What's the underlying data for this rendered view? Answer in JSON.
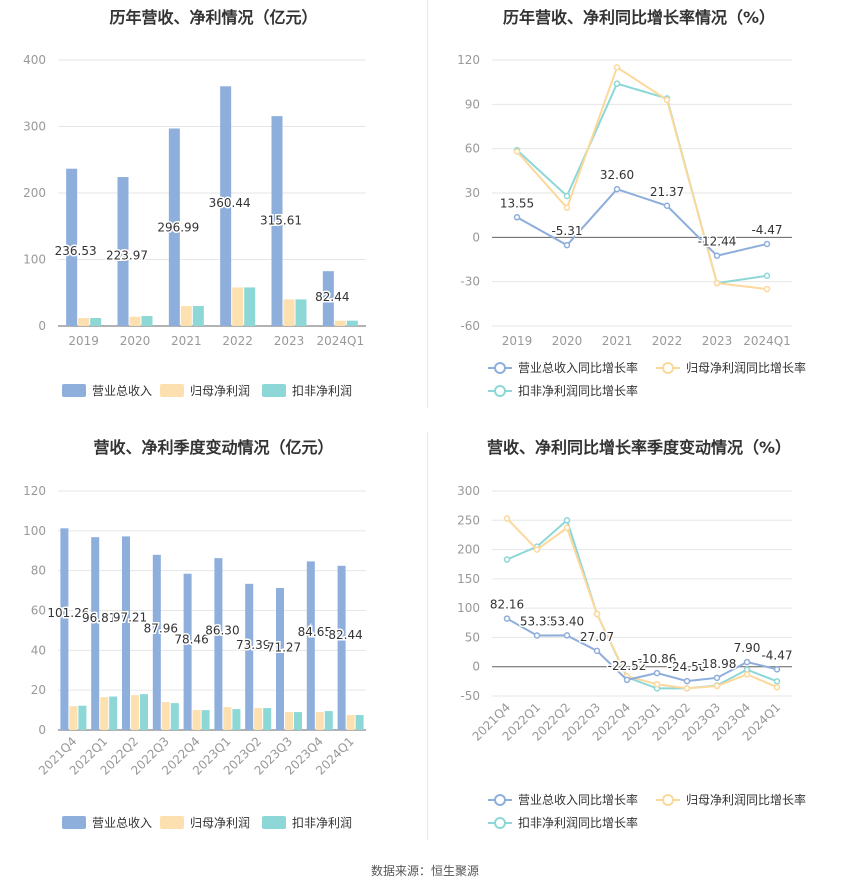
{
  "source": "数据来源：恒生聚源",
  "chart_data": [
    {
      "type": "bar",
      "title": "历年营收、净利情况（亿元）",
      "categories": [
        "2019",
        "2020",
        "2021",
        "2022",
        "2023",
        "2024Q1"
      ],
      "ylim": [
        0,
        400
      ],
      "yticks": [
        0,
        100,
        200,
        300,
        400
      ],
      "grid": true,
      "legend_position": "bottom",
      "label_series": 0,
      "series": [
        {
          "name": "营业总收入",
          "color": "#8eaedc",
          "values": [
            236.53,
            223.97,
            296.99,
            360.44,
            315.61,
            82.44
          ],
          "labels": [
            "236.53",
            "223.97",
            "296.99",
            "360.44",
            "315.61",
            "82.44"
          ]
        },
        {
          "name": "归母净利润",
          "color": "#fde0b0",
          "values": [
            12,
            14,
            30,
            58,
            40,
            8
          ]
        },
        {
          "name": "扣非净利润",
          "color": "#8dd7d7",
          "values": [
            12,
            15,
            30,
            58,
            40,
            8
          ]
        }
      ]
    },
    {
      "type": "line",
      "title": "历年营收、净利同比增长率情况（%）",
      "categories": [
        "2019",
        "2020",
        "2021",
        "2022",
        "2023",
        "2024Q1"
      ],
      "ylim": [
        -60,
        120
      ],
      "yticks": [
        -60,
        -30,
        0,
        30,
        60,
        90,
        120
      ],
      "grid": true,
      "legend_position": "bottom",
      "label_series": 0,
      "series": [
        {
          "name": "营业总收入同比增长率",
          "color": "#8eaedc",
          "values": [
            13.55,
            -5.31,
            32.6,
            21.37,
            -12.44,
            -4.47
          ],
          "labels": [
            "13.55",
            "-5.31",
            "32.60",
            "21.37",
            "-12.44",
            "-4.47"
          ]
        },
        {
          "name": "归母净利润同比增长率",
          "color": "#fdd89b",
          "values": [
            58,
            20,
            115,
            93,
            -31,
            -35
          ]
        },
        {
          "name": "扣非净利润同比增长率",
          "color": "#8dd7d7",
          "values": [
            59,
            28,
            104,
            94,
            -31,
            -26
          ]
        }
      ]
    },
    {
      "type": "bar",
      "title": "营收、净利季度变动情况（亿元）",
      "categories": [
        "2021Q4",
        "2022Q1",
        "2022Q2",
        "2022Q3",
        "2022Q4",
        "2023Q1",
        "2023Q2",
        "2023Q3",
        "2023Q4",
        "2024Q1"
      ],
      "ylim": [
        0,
        120
      ],
      "yticks": [
        0,
        20,
        40,
        60,
        80,
        100,
        120
      ],
      "grid": true,
      "legend_position": "bottom",
      "label_series": 0,
      "series": [
        {
          "name": "营业总收入",
          "color": "#8eaedc",
          "values": [
            101.26,
            96.81,
            97.21,
            87.96,
            78.46,
            86.3,
            73.39,
            71.27,
            84.65,
            82.44
          ],
          "labels": [
            "101.26",
            "96.81",
            "97.21",
            "87.96",
            "78.46",
            "86.30",
            "73.39",
            "71.27",
            "84.65",
            "82.44"
          ]
        },
        {
          "name": "归母净利润",
          "color": "#fde0b0",
          "values": [
            12,
            16.5,
            17.5,
            14,
            10,
            11.5,
            11,
            9,
            9,
            7.5
          ]
        },
        {
          "name": "扣非净利润",
          "color": "#8dd7d7",
          "values": [
            12.2,
            16.8,
            18,
            13.5,
            10,
            10.5,
            11,
            9,
            9.5,
            7.5
          ]
        }
      ]
    },
    {
      "type": "line",
      "title": "营收、净利同比增长率季度变动情况（%）",
      "categories": [
        "2021Q4",
        "2022Q1",
        "2022Q2",
        "2022Q3",
        "2022Q4",
        "2023Q1",
        "2023Q2",
        "2023Q3",
        "2023Q4",
        "2024Q1"
      ],
      "ylim": [
        -50,
        300
      ],
      "yticks": [
        -50,
        0,
        50,
        100,
        150,
        200,
        250,
        300
      ],
      "grid": true,
      "legend_position": "bottom",
      "label_series": 0,
      "series": [
        {
          "name": "营业总收入同比增长率",
          "color": "#8eaedc",
          "values": [
            82.16,
            53.33,
            53.4,
            27.07,
            -22.52,
            -10.86,
            -24.5,
            -18.98,
            7.9,
            -4.47
          ],
          "labels": [
            "82.16",
            "53.33",
            "53.40",
            "27.07",
            "-22.52",
            "-10.86",
            "-24.50",
            "-18.98",
            "7.90",
            "-4.47"
          ]
        },
        {
          "name": "归母净利润同比增长率",
          "color": "#fdd89b",
          "values": [
            253,
            200,
            237,
            90,
            -16,
            -30,
            -37,
            -33,
            -13,
            -35
          ]
        },
        {
          "name": "扣非净利润同比增长率",
          "color": "#8dd7d7",
          "values": [
            183,
            205,
            250,
            90,
            -18,
            -37,
            -37,
            -32,
            -5,
            -25
          ]
        }
      ]
    }
  ]
}
